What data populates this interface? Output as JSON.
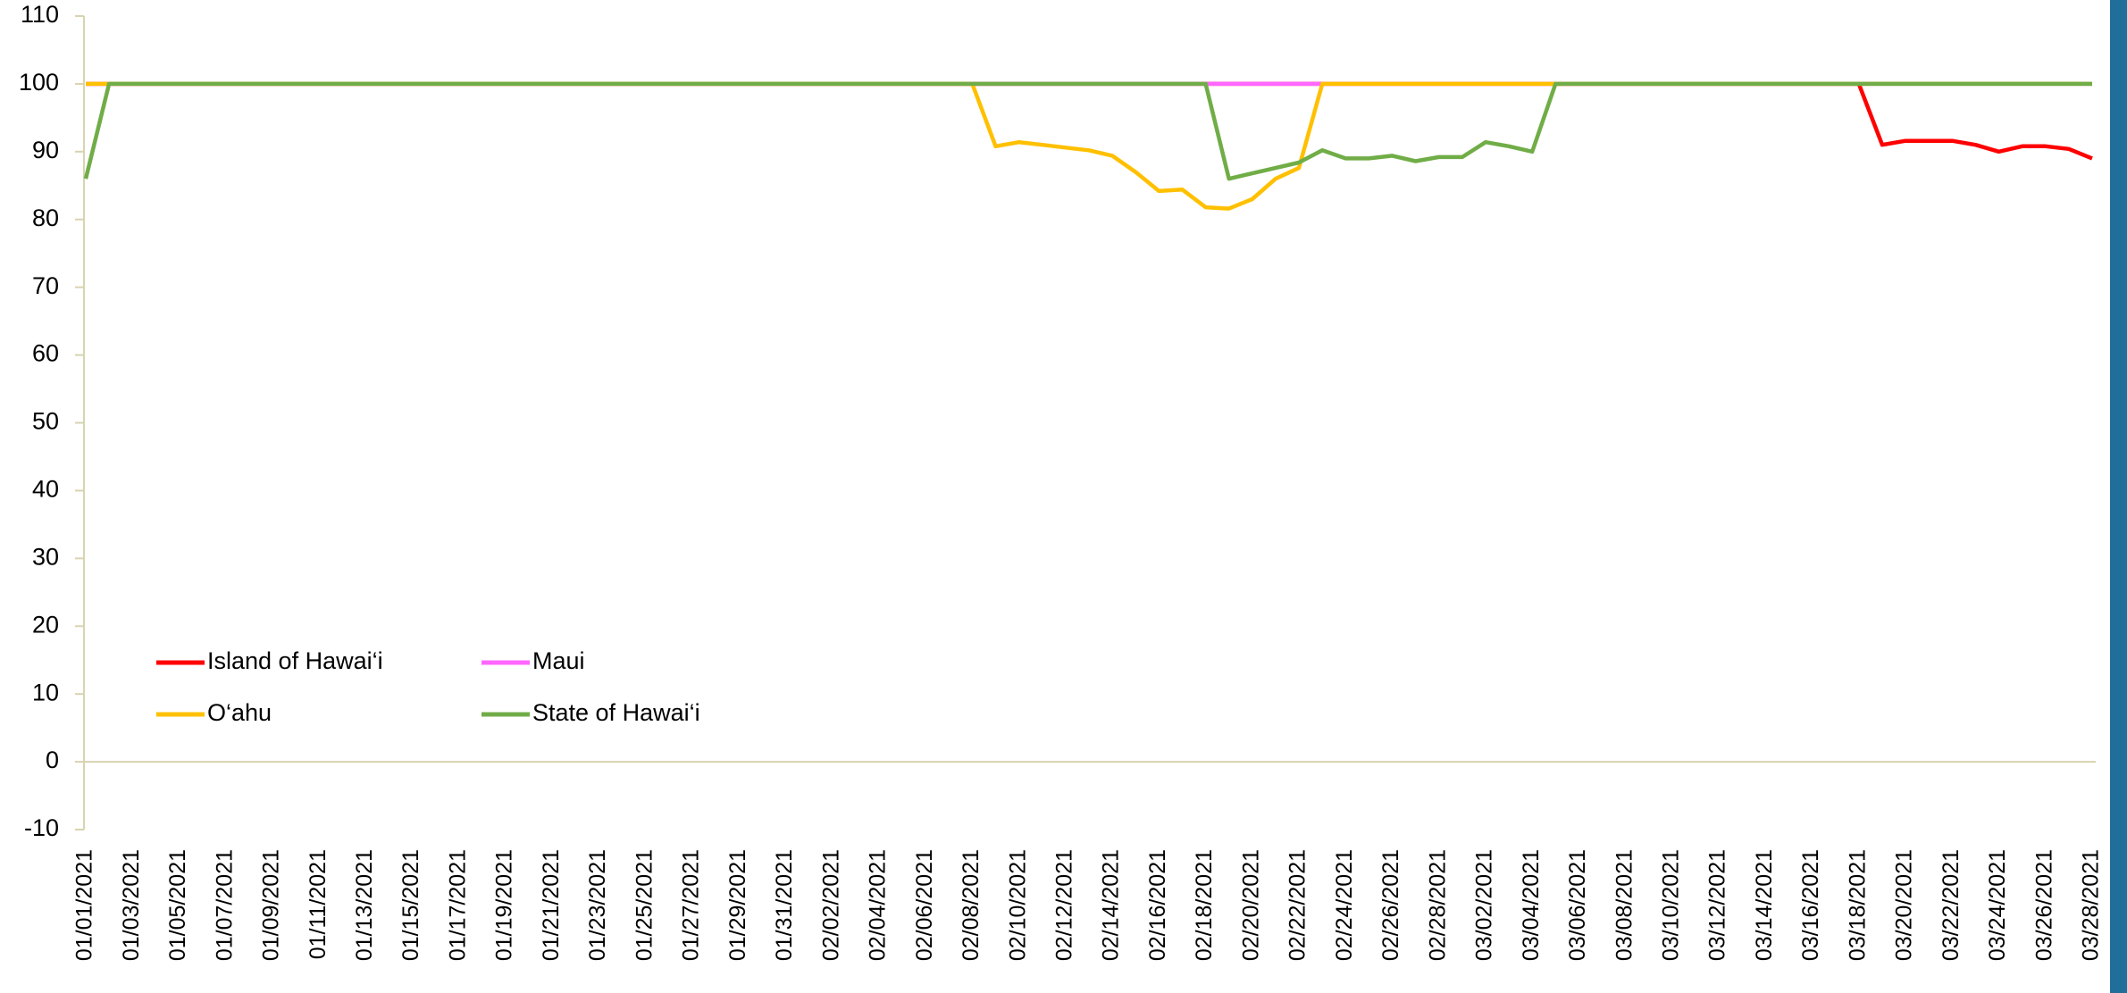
{
  "chart_data": {
    "type": "line",
    "categories": [
      "01/01/2021",
      null,
      "01/03/2021",
      null,
      "01/05/2021",
      null,
      "01/07/2021",
      null,
      "01/09/2021",
      null,
      "01/11/2021",
      null,
      "01/13/2021",
      null,
      "01/15/2021",
      null,
      "01/17/2021",
      null,
      "01/19/2021",
      null,
      "01/21/2021",
      null,
      "01/23/2021",
      null,
      "01/25/2021",
      null,
      "01/27/2021",
      null,
      "01/29/2021",
      null,
      "01/31/2021",
      null,
      "02/02/2021",
      null,
      "02/04/2021",
      null,
      "02/06/2021",
      null,
      "02/08/2021",
      null,
      "02/10/2021",
      null,
      "02/12/2021",
      null,
      "02/14/2021",
      null,
      "02/16/2021",
      null,
      "02/18/2021",
      null,
      "02/20/2021",
      null,
      "02/22/2021",
      null,
      "02/24/2021",
      null,
      "02/26/2021",
      null,
      "02/28/2021",
      null,
      "03/02/2021",
      null,
      "03/04/2021",
      null,
      "03/06/2021",
      null,
      "03/08/2021",
      null,
      "03/10/2021",
      null,
      "03/12/2021",
      null,
      "03/14/2021",
      null,
      "03/16/2021",
      null,
      "03/18/2021",
      null,
      "03/20/2021",
      null,
      "03/22/2021",
      null,
      "03/24/2021",
      null,
      "03/26/2021",
      null,
      "03/28/2021"
    ],
    "series": [
      {
        "name": "Island of Hawai‘i",
        "color": "#ff0000",
        "values": [
          100,
          100,
          100,
          100,
          100,
          100,
          100,
          100,
          100,
          100,
          100,
          100,
          100,
          100,
          100,
          100,
          100,
          100,
          100,
          100,
          100,
          100,
          100,
          100,
          100,
          100,
          100,
          100,
          100,
          100,
          100,
          100,
          100,
          100,
          100,
          100,
          100,
          100,
          100,
          100,
          100,
          100,
          100,
          100,
          100,
          100,
          100,
          100,
          100,
          100,
          100,
          100,
          100,
          100,
          100,
          100,
          100,
          100,
          100,
          100,
          100,
          100,
          100,
          100,
          100,
          100,
          100,
          100,
          100,
          100,
          100,
          100,
          100,
          100,
          100,
          100,
          100,
          91,
          91.6,
          91.6,
          91.6,
          91,
          90,
          90.8,
          90.8,
          90.4,
          89
        ]
      },
      {
        "name": "Maui",
        "color": "#ff66ff",
        "values": [
          100,
          100,
          100,
          100,
          100,
          100,
          100,
          100,
          100,
          100,
          100,
          100,
          100,
          100,
          100,
          100,
          100,
          100,
          100,
          100,
          100,
          100,
          100,
          100,
          100,
          100,
          100,
          100,
          100,
          100,
          100,
          100,
          100,
          100,
          100,
          100,
          100,
          100,
          100,
          100,
          100,
          100,
          100,
          100,
          100,
          100,
          100,
          100,
          100,
          100,
          100,
          100,
          100,
          100,
          100,
          100,
          100,
          100,
          100,
          100,
          100,
          100,
          100,
          100,
          100,
          100,
          100,
          100,
          100,
          100,
          100,
          100,
          100,
          100,
          100,
          100,
          100,
          100,
          100,
          100,
          100,
          100,
          100,
          100,
          100,
          100,
          100
        ]
      },
      {
        "name": "O‘ahu",
        "color": "#ffc000",
        "values": [
          100,
          100,
          100,
          100,
          100,
          100,
          100,
          100,
          100,
          100,
          100,
          100,
          100,
          100,
          100,
          100,
          100,
          100,
          100,
          100,
          100,
          100,
          100,
          100,
          100,
          100,
          100,
          100,
          100,
          100,
          100,
          100,
          100,
          100,
          100,
          100,
          100,
          100,
          100,
          90.8,
          91.4,
          91,
          90.6,
          90.2,
          89.4,
          87,
          84.2,
          84.4,
          81.8,
          81.6,
          83,
          86,
          87.6,
          100,
          100,
          100,
          100,
          100,
          100,
          100,
          100,
          100,
          100,
          100,
          100,
          100,
          100,
          100,
          100,
          100,
          100,
          100,
          100,
          100,
          100,
          100,
          100,
          100,
          100,
          100,
          100,
          100,
          100,
          100,
          100,
          100,
          100
        ]
      },
      {
        "name": "State of Hawai‘i",
        "color": "#70ad47",
        "values": [
          86,
          100,
          100,
          100,
          100,
          100,
          100,
          100,
          100,
          100,
          100,
          100,
          100,
          100,
          100,
          100,
          100,
          100,
          100,
          100,
          100,
          100,
          100,
          100,
          100,
          100,
          100,
          100,
          100,
          100,
          100,
          100,
          100,
          100,
          100,
          100,
          100,
          100,
          100,
          100,
          100,
          100,
          100,
          100,
          100,
          100,
          100,
          100,
          100,
          86,
          86.8,
          87.6,
          88.4,
          90.2,
          89,
          89,
          89.4,
          88.6,
          89.2,
          89.2,
          91.4,
          90.8,
          90,
          100,
          100,
          100,
          100,
          100,
          100,
          100,
          100,
          100,
          100,
          100,
          100,
          100,
          100,
          100,
          100,
          100,
          100,
          100,
          100,
          100,
          100,
          100,
          100
        ]
      }
    ],
    "ylim": [
      -10,
      110
    ],
    "yticks": [
      -10,
      0,
      10,
      20,
      30,
      40,
      50,
      60,
      70,
      80,
      90,
      100,
      110
    ],
    "legend": "lower-left"
  }
}
